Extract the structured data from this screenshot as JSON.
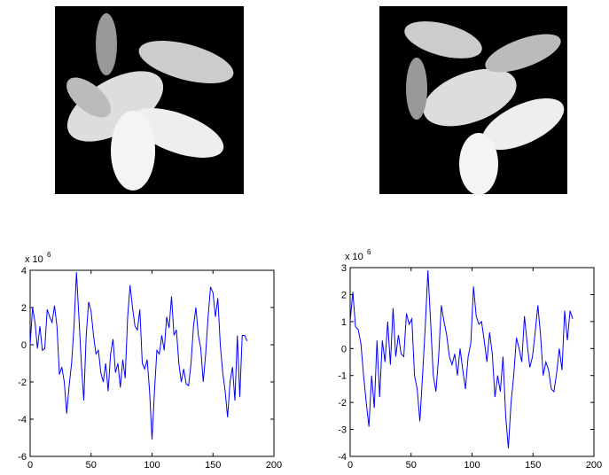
{
  "chart_data": [
    {
      "type": "line",
      "y_scale_label": {
        "base": "x 10",
        "exponent": "6"
      },
      "xlim": [
        0,
        200
      ],
      "xticks": [
        0,
        50,
        100,
        150,
        200
      ],
      "ylim": [
        -6,
        4
      ],
      "yticks": [
        -6,
        -4,
        -2,
        0,
        2,
        4
      ],
      "series": [
        {
          "color": "#0000ff",
          "x": [
            0,
            2,
            4,
            6,
            8,
            10,
            12,
            14,
            16,
            18,
            20,
            22,
            24,
            26,
            28,
            30,
            32,
            34,
            36,
            38,
            40,
            42,
            44,
            46,
            48,
            50,
            52,
            54,
            56,
            58,
            60,
            62,
            64,
            66,
            68,
            70,
            72,
            74,
            76,
            78,
            80,
            82,
            84,
            86,
            88,
            90,
            92,
            94,
            96,
            98,
            100,
            102,
            104,
            106,
            108,
            110,
            112,
            114,
            116,
            118,
            120,
            122,
            124,
            126,
            128,
            130,
            132,
            134,
            136,
            138,
            140,
            142,
            144,
            146,
            148,
            150,
            152,
            154,
            156,
            158,
            160,
            162,
            164,
            166,
            168,
            170,
            172,
            174,
            176,
            178
          ],
          "values": [
            0,
            2.0,
            1.2,
            -0.2,
            1.0,
            -0.3,
            -0.2,
            1.9,
            1.5,
            1.2,
            2.1,
            1.0,
            -1.6,
            -1.2,
            -2.0,
            -3.7,
            -2.2,
            -1.0,
            1.0,
            3.9,
            1.5,
            -1.0,
            -3.0,
            0.5,
            2.3,
            1.8,
            0.5,
            -0.5,
            -0.3,
            -1.5,
            -2.0,
            -1.0,
            -2.5,
            -0.5,
            0.3,
            -1.5,
            -1.0,
            -2.3,
            -0.8,
            -1.8,
            1.5,
            3.2,
            2.0,
            1.0,
            0.8,
            1.9,
            -1.0,
            -1.3,
            -0.8,
            -2.5,
            -5.1,
            -2.5,
            -0.3,
            -0.5,
            0.5,
            -0.3,
            1.5,
            0.9,
            2.6,
            0.5,
            0.8,
            -1.0,
            -2.0,
            -1.3,
            -2.1,
            -2.2,
            -1.0,
            1.0,
            2.0,
            0.5,
            -0.2,
            -2.0,
            -0.5,
            1.5,
            3.1,
            2.8,
            1.5,
            2.5,
            0.0,
            -1.5,
            -2.5,
            -3.9,
            -2.0,
            -1.2,
            -3.0,
            0.5,
            -2.8,
            0.5,
            0.5,
            0.2
          ]
        }
      ]
    },
    {
      "type": "line",
      "y_scale_label": {
        "base": "x 10",
        "exponent": "6"
      },
      "xlim": [
        0,
        200
      ],
      "xticks": [
        0,
        50,
        100,
        150,
        200
      ],
      "ylim": [
        -4,
        3
      ],
      "yticks": [
        -4,
        -3,
        -2,
        -1,
        0,
        1,
        2,
        3
      ],
      "series": [
        {
          "color": "#0000ff",
          "x": [
            0,
            2.2,
            4.4,
            6.6,
            8.8,
            11,
            13.2,
            15.4,
            17.6,
            19.8,
            22,
            24.2,
            26.4,
            28.6,
            30.8,
            33,
            35.2,
            37.4,
            39.6,
            41.8,
            44,
            46.2,
            48.4,
            50.6,
            52.8,
            55,
            57.2,
            59.4,
            61.6,
            63.8,
            66,
            68.2,
            70.4,
            72.6,
            74.8,
            77,
            79.2,
            81.4,
            83.6,
            85.8,
            88,
            90.2,
            92.4,
            94.6,
            96.8,
            99,
            101.2,
            103.4,
            105.6,
            107.8,
            110,
            112.2,
            114.4,
            116.6,
            118.8,
            121,
            123.2,
            125.4,
            127.6,
            129.8,
            132,
            134.2,
            136.4,
            138.6,
            140.8,
            143,
            145.2,
            147.4,
            149.6,
            151.8,
            154,
            156.2,
            158.4,
            160.6,
            162.8,
            165,
            167.2,
            169.4,
            171.6,
            173.8,
            176,
            178.2,
            180.4,
            182.6
          ],
          "values": [
            1.0,
            2.1,
            0.8,
            0.7,
            0.2,
            -1.0,
            -2.0,
            -2.9,
            -1.0,
            -2.2,
            0.3,
            -1.8,
            0.3,
            -0.5,
            1.0,
            -0.6,
            1.5,
            -0.3,
            0.5,
            -0.2,
            -0.3,
            1.3,
            0.9,
            1.1,
            -1.0,
            -1.5,
            -2.7,
            -1.0,
            0.8,
            2.9,
            1.0,
            -1.0,
            -1.6,
            -0.3,
            1.6,
            1.0,
            0.5,
            -0.3,
            -0.6,
            -0.2,
            -1.0,
            0.0,
            -0.8,
            -1.5,
            -0.3,
            0.2,
            2.3,
            1.2,
            0.9,
            1.0,
            0.3,
            -0.5,
            0.6,
            -0.2,
            -1.8,
            -1.0,
            -1.6,
            -0.3,
            -2.5,
            -3.7,
            -2.0,
            -1.0,
            0.4,
            0.0,
            -0.5,
            1.2,
            0.2,
            -0.7,
            -0.3,
            0.6,
            1.6,
            0.5,
            -1.0,
            -0.5,
            -0.8,
            -1.5,
            -1.6,
            -0.9,
            0.0,
            -0.8,
            1.4,
            0.3,
            1.4,
            1.1
          ]
        }
      ]
    }
  ]
}
